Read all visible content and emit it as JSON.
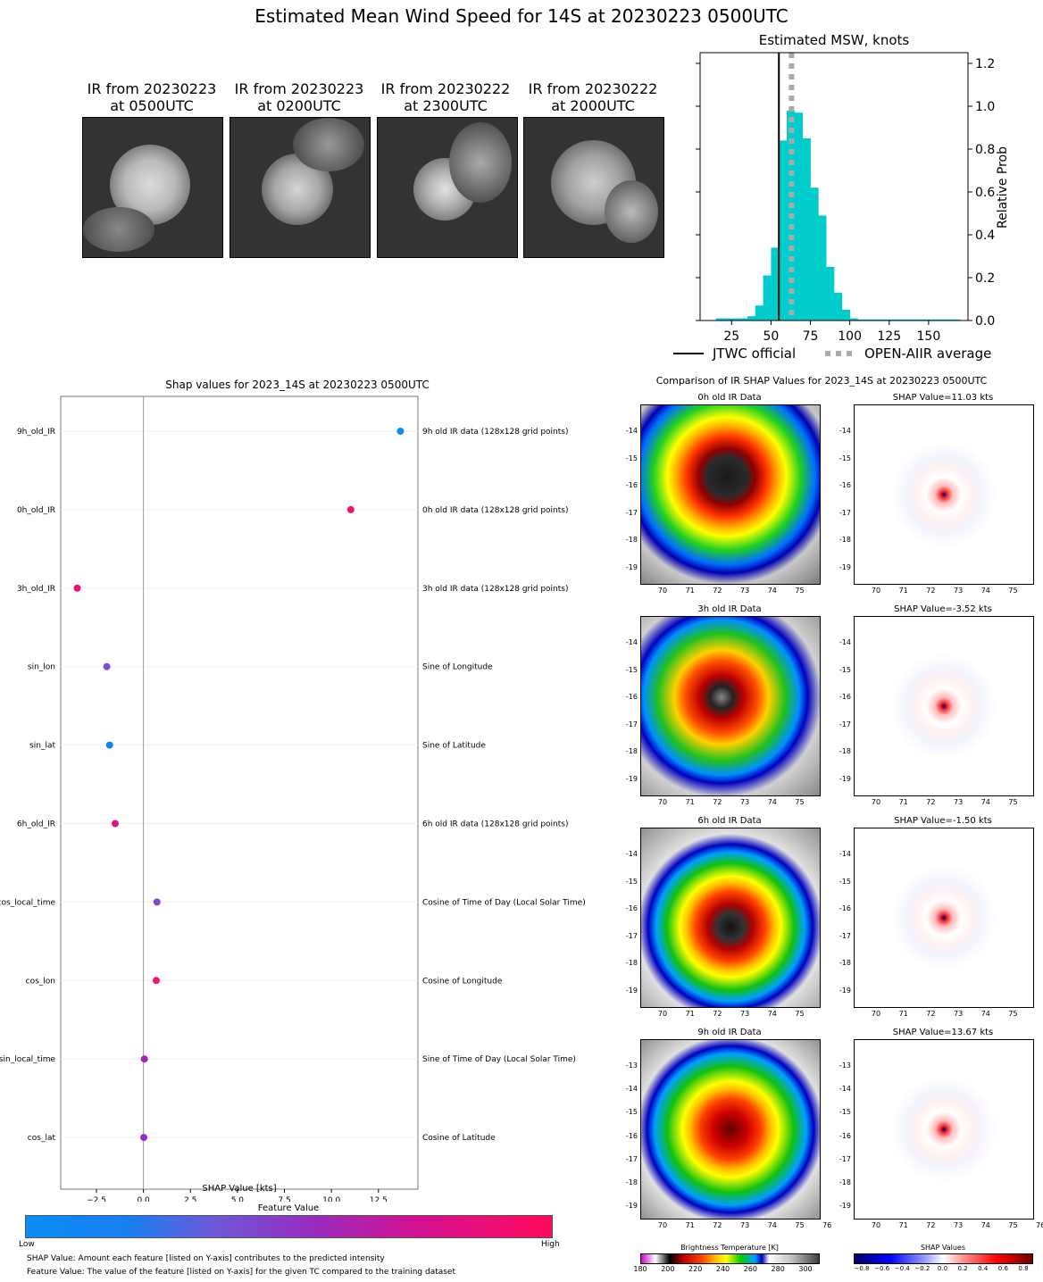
{
  "title": "Estimated Mean Wind Speed for 14S at 20230223 0500UTC",
  "ir_images": [
    {
      "label": "IR from 20230223\nat 0500UTC"
    },
    {
      "label": "IR from 20230223\nat 0200UTC"
    },
    {
      "label": "IR from 20230222\nat 2300UTC"
    },
    {
      "label": "IR from 20230222\nat 2000UTC"
    }
  ],
  "chart_data": [
    {
      "type": "bar",
      "title": "Estimated MSW, knots",
      "xlabel": "",
      "ylabel": "Relative Prob",
      "xlim": [
        5,
        175
      ],
      "ylim": [
        0,
        1.25
      ],
      "xticks": [
        25,
        50,
        75,
        100,
        125,
        150
      ],
      "yticks": [
        0.0,
        0.2,
        0.4,
        0.6,
        0.8,
        1.0,
        1.2
      ],
      "bin_width": 5,
      "bins_x": [
        15,
        20,
        25,
        30,
        35,
        40,
        45,
        50,
        55,
        60,
        65,
        70,
        75,
        80,
        85,
        90,
        95,
        100,
        105,
        110,
        115,
        120,
        125,
        130,
        135,
        140,
        145,
        150,
        155,
        160,
        165
      ],
      "values": [
        0.01,
        0.01,
        0.01,
        0.01,
        0.02,
        0.07,
        0.21,
        0.34,
        0.84,
        0.98,
        0.97,
        0.85,
        0.62,
        0.49,
        0.25,
        0.13,
        0.05,
        0.01,
        0.005,
        0.005,
        0.005,
        0.005,
        0.005,
        0.005,
        0.005,
        0.005,
        0.005,
        0.005,
        0.005,
        0.005,
        0.005
      ],
      "jtwc_official": 55,
      "open_aiir_average": 63,
      "legend": [
        {
          "name": "JTWC official",
          "style": "solid",
          "color": "#000000"
        },
        {
          "name": "OPEN-AIIR average",
          "style": "dotted",
          "color": "#aaaaaa"
        }
      ],
      "legend_placement": "bottom"
    },
    {
      "type": "scatter",
      "title": "Shap values for 2023_14S at 20230223 0500UTC",
      "xlabel": "SHAP Value [kts]",
      "xlim": [
        -4.4,
        14.6
      ],
      "xticks": [
        -2.5,
        0.0,
        2.5,
        5.0,
        7.5,
        10.0,
        12.5
      ],
      "features": [
        {
          "name": "9h_old_IR",
          "desc": "9h old IR data (128x128 grid points)",
          "shap": 13.67,
          "color": "#0a8ef5"
        },
        {
          "name": "0h_old_IR",
          "desc": "0h old IR data (128x128 grid points)",
          "shap": 11.03,
          "color": "#f0146e"
        },
        {
          "name": "3h_old_IR",
          "desc": "3h old IR data (128x128 grid points)",
          "shap": -3.52,
          "color": "#ee0d78"
        },
        {
          "name": "sin_lon",
          "desc": "Sine of Longitude",
          "shap": -1.95,
          "color": "#7e4ad0"
        },
        {
          "name": "sin_lat",
          "desc": "Sine of Latitude",
          "shap": -1.8,
          "color": "#0a84f0"
        },
        {
          "name": "6h_old_IR",
          "desc": "6h old IR data (128x128 grid points)",
          "shap": -1.5,
          "color": "#e2108a"
        },
        {
          "name": "cos_local_time",
          "desc": "Cosine of Time of Day (Local Solar Time)",
          "shap": 0.72,
          "color": "#8047cf"
        },
        {
          "name": "cos_lon",
          "desc": "Cosine of Longitude",
          "shap": 0.68,
          "color": "#f41472"
        },
        {
          "name": "sin_local_time",
          "desc": "Sine of Time of Day (Local Solar Time)",
          "shap": 0.05,
          "color": "#a722b6"
        },
        {
          "name": "cos_lat",
          "desc": "Cosine of Latitude",
          "shap": 0.02,
          "color": "#9a2abd"
        }
      ],
      "colorbar": {
        "title": "Feature Value",
        "low": "Low",
        "high": "High"
      }
    }
  ],
  "footnotes": [
    "SHAP Value: Amount each feature [listed on Y-axis] contributes to the predicted intensity",
    "Feature Value: The value of the feature [listed on Y-axis] for the given TC compared to the training dataset"
  ],
  "comparison": {
    "title": "Comparison of IR SHAP Values for 2023_14S at 20230223 0500UTC",
    "rows": [
      {
        "ir_title": "0h old IR Data",
        "shap_title": "SHAP Value=11.03 kts",
        "yticks": [
          "-14",
          "-15",
          "-16",
          "-17",
          "-18",
          "-19"
        ],
        "xticks": [
          "70",
          "71",
          "72",
          "73",
          "74",
          "75"
        ]
      },
      {
        "ir_title": "3h old IR Data",
        "shap_title": "SHAP Value=-3.52 kts",
        "yticks": [
          "-14",
          "-15",
          "-16",
          "-17",
          "-18",
          "-19"
        ],
        "xticks": [
          "70",
          "71",
          "72",
          "73",
          "74",
          "75"
        ]
      },
      {
        "ir_title": "6h old IR Data",
        "shap_title": "SHAP Value=-1.50 kts",
        "yticks": [
          "-14",
          "-15",
          "-16",
          "-17",
          "-18",
          "-19"
        ],
        "xticks": [
          "70",
          "71",
          "72",
          "73",
          "74",
          "75"
        ]
      },
      {
        "ir_title": "9h old IR Data",
        "shap_title": "SHAP Value=13.67 kts",
        "yticks": [
          "-13",
          "-14",
          "-15",
          "-16",
          "-17",
          "-18",
          "-19"
        ],
        "xticks": [
          "70",
          "71",
          "72",
          "73",
          "74",
          "75",
          "76"
        ]
      }
    ],
    "bt_colorbar": {
      "title": "Brightness Temperature [K]",
      "ticks": [
        "180",
        "200",
        "220",
        "240",
        "260",
        "280",
        "300"
      ]
    },
    "shap_colorbar": {
      "title": "SHAP Values",
      "ticks": [
        "−0.8",
        "−0.6",
        "−0.4",
        "−0.2",
        "0.0",
        "0.2",
        "0.4",
        "0.6",
        "0.8"
      ]
    }
  }
}
